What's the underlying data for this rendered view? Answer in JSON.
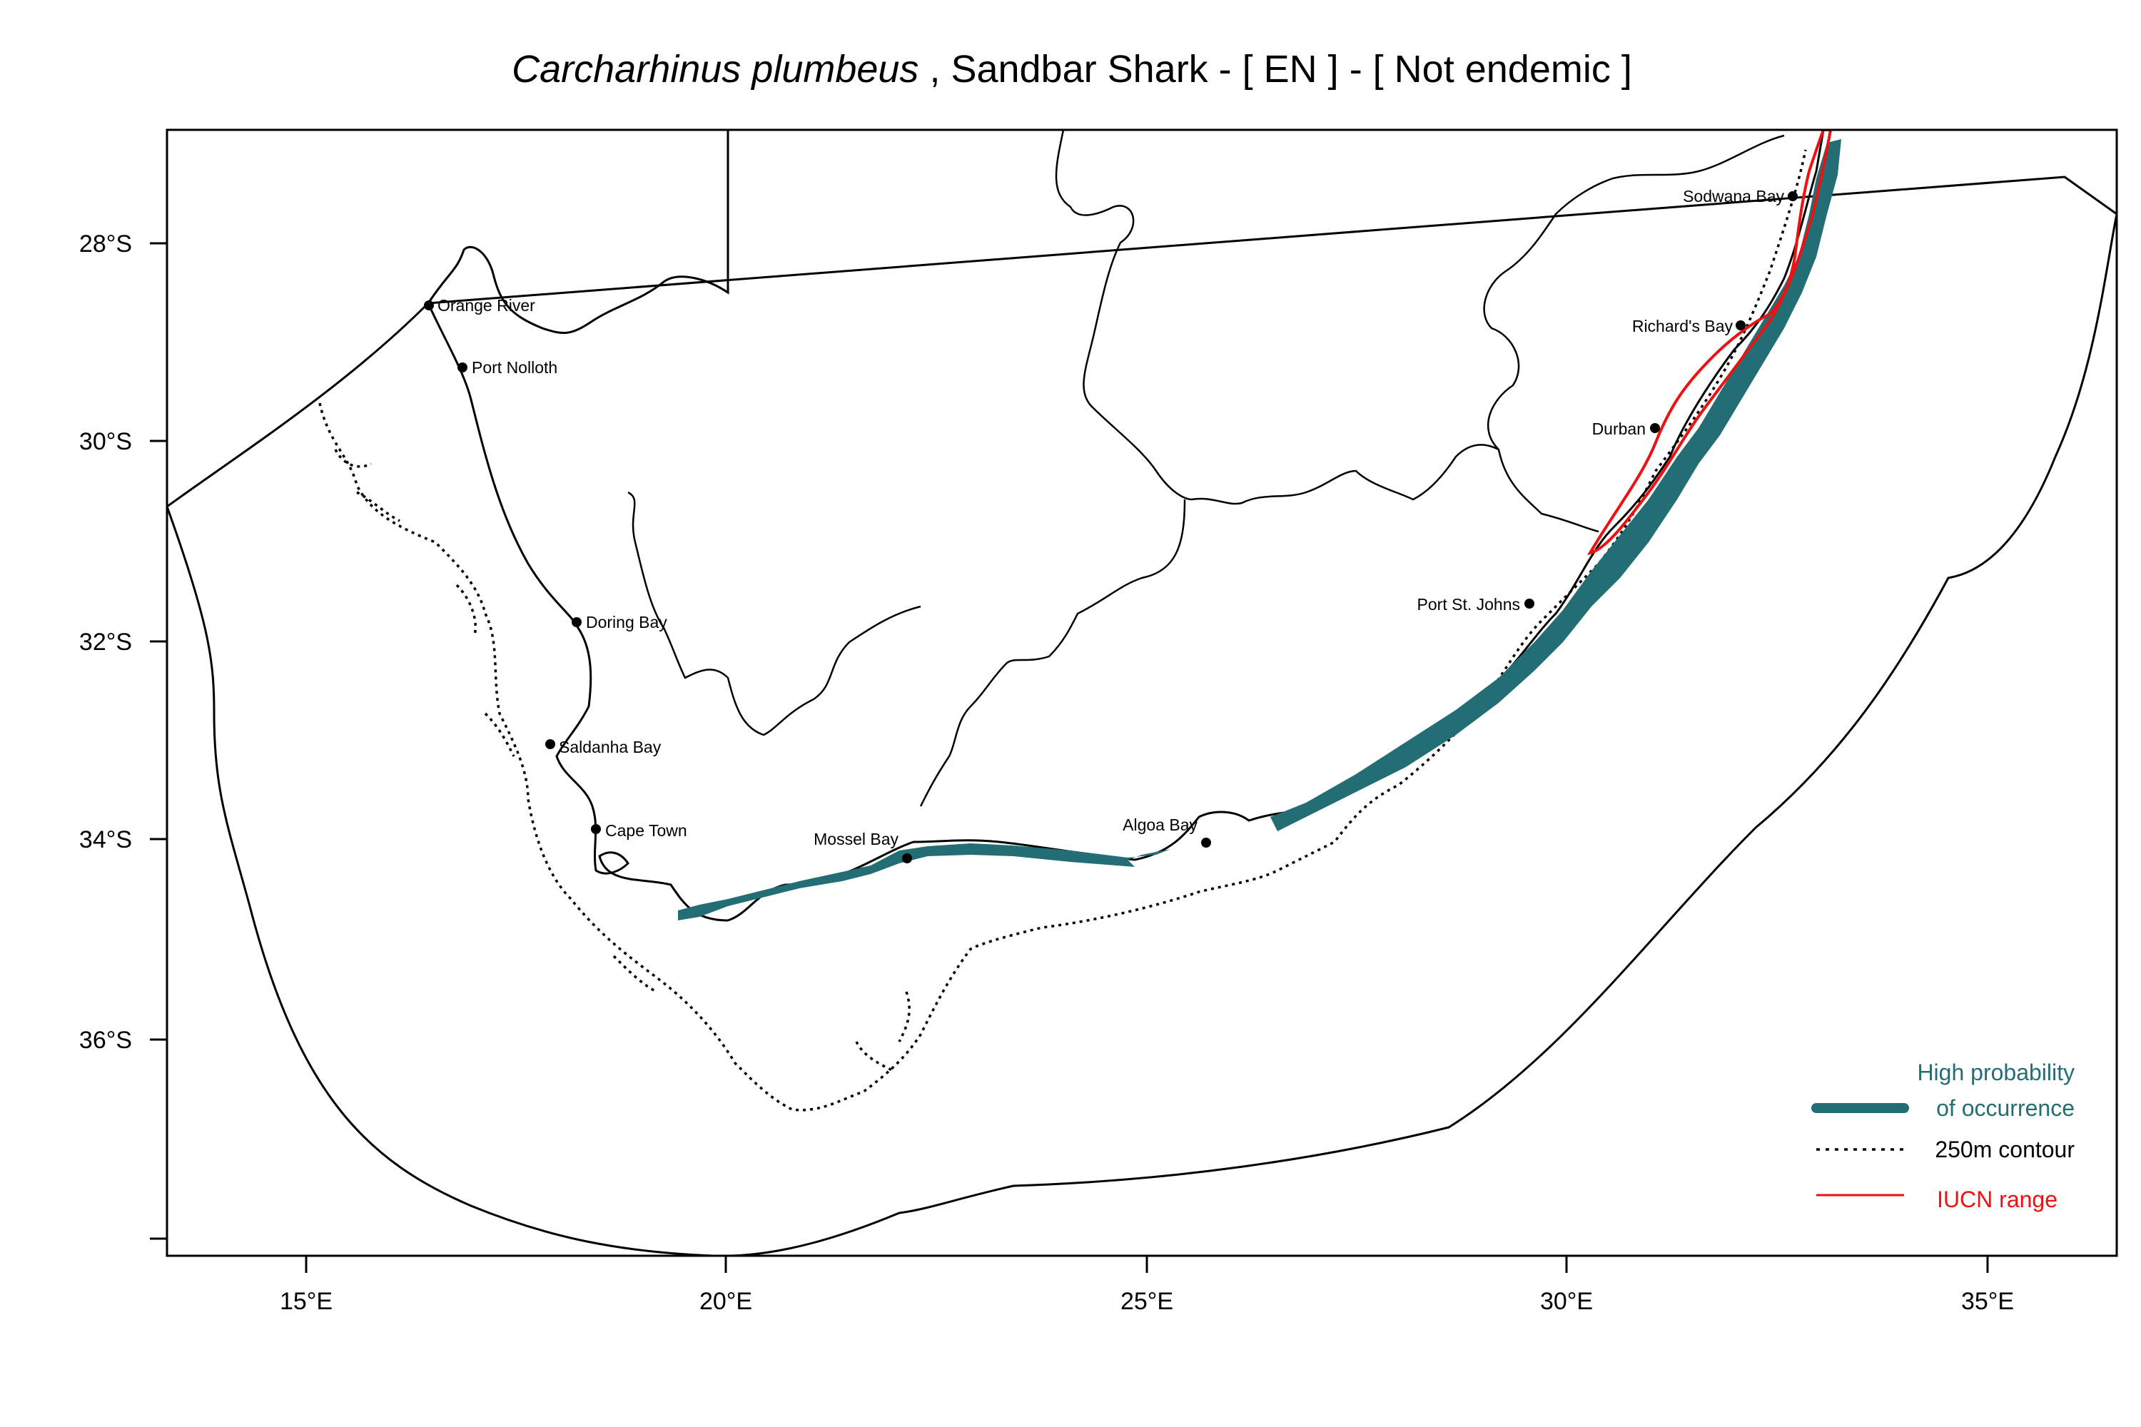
{
  "title": {
    "species": "Carcharhinus plumbeus",
    "rest": " , Sandbar Shark  - [ EN ] - [ Not endemic ]"
  },
  "axes": {
    "x_ticks": [
      "15°E",
      "20°E",
      "25°E",
      "30°E",
      "35°E"
    ],
    "y_ticks": [
      "28°S",
      "30°S",
      "32°S",
      "34°S",
      "36°S"
    ]
  },
  "places": [
    {
      "id": "orange-river",
      "label": "Orange River"
    },
    {
      "id": "port-nolloth",
      "label": "Port Nolloth"
    },
    {
      "id": "doring-bay",
      "label": "Doring Bay"
    },
    {
      "id": "saldanha-bay",
      "label": "Saldanha Bay"
    },
    {
      "id": "cape-town",
      "label": "Cape Town"
    },
    {
      "id": "mossel-bay",
      "label": "Mossel Bay"
    },
    {
      "id": "algoa-bay",
      "label": "Algoa Bay"
    },
    {
      "id": "port-st-johns",
      "label": "Port St. Johns"
    },
    {
      "id": "durban",
      "label": "Durban"
    },
    {
      "id": "richards-bay",
      "label": "Richard's Bay"
    },
    {
      "id": "sodwana-bay",
      "label": "Sodwana Bay"
    }
  ],
  "legend": {
    "high_line1": "High probability",
    "high_line2": "of occurrence",
    "contour": "250m contour",
    "iucn": "IUCN range"
  },
  "colors": {
    "occurrence": "#236e74",
    "iucn": "#ee1111",
    "frame": "#000000"
  }
}
